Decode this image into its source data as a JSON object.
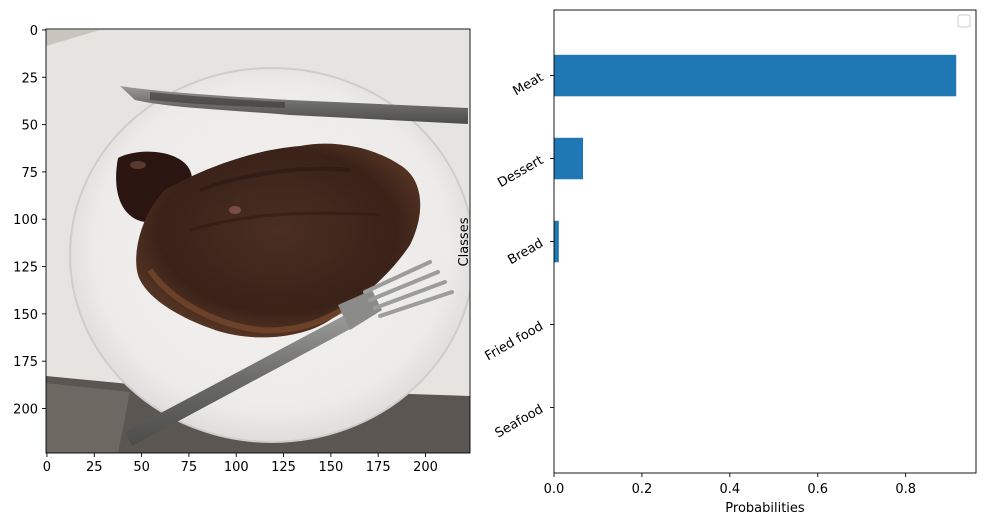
{
  "chart_data": [
    {
      "type": "image",
      "title": "",
      "xticks": [
        0,
        25,
        50,
        75,
        100,
        125,
        150,
        175,
        200
      ],
      "yticks": [
        0,
        25,
        50,
        75,
        100,
        125,
        150,
        175,
        200
      ],
      "xlim": [
        -0.5,
        223.5
      ],
      "ylim": [
        223.5,
        -0.5
      ],
      "image_content": "photo of a cooked steak with dark sauce on a white plate, with a knife and fork"
    },
    {
      "type": "bar",
      "orientation": "horizontal",
      "title": "",
      "xlabel": "Probabilities",
      "ylabel": "Classes",
      "categories": [
        "Seafood",
        "Fried food",
        "Bread",
        "Dessert",
        "Meat"
      ],
      "values": [
        0.0005,
        0.0007,
        0.011,
        0.066,
        0.915
      ],
      "xlim": [
        0,
        0.96
      ],
      "xticks": [
        0.0,
        0.2,
        0.4,
        0.6,
        0.8
      ],
      "xtick_labels": [
        "0.0",
        "0.2",
        "0.4",
        "0.6",
        "0.8"
      ],
      "bar_color": "#1f77b4",
      "legend": "top-right"
    }
  ]
}
